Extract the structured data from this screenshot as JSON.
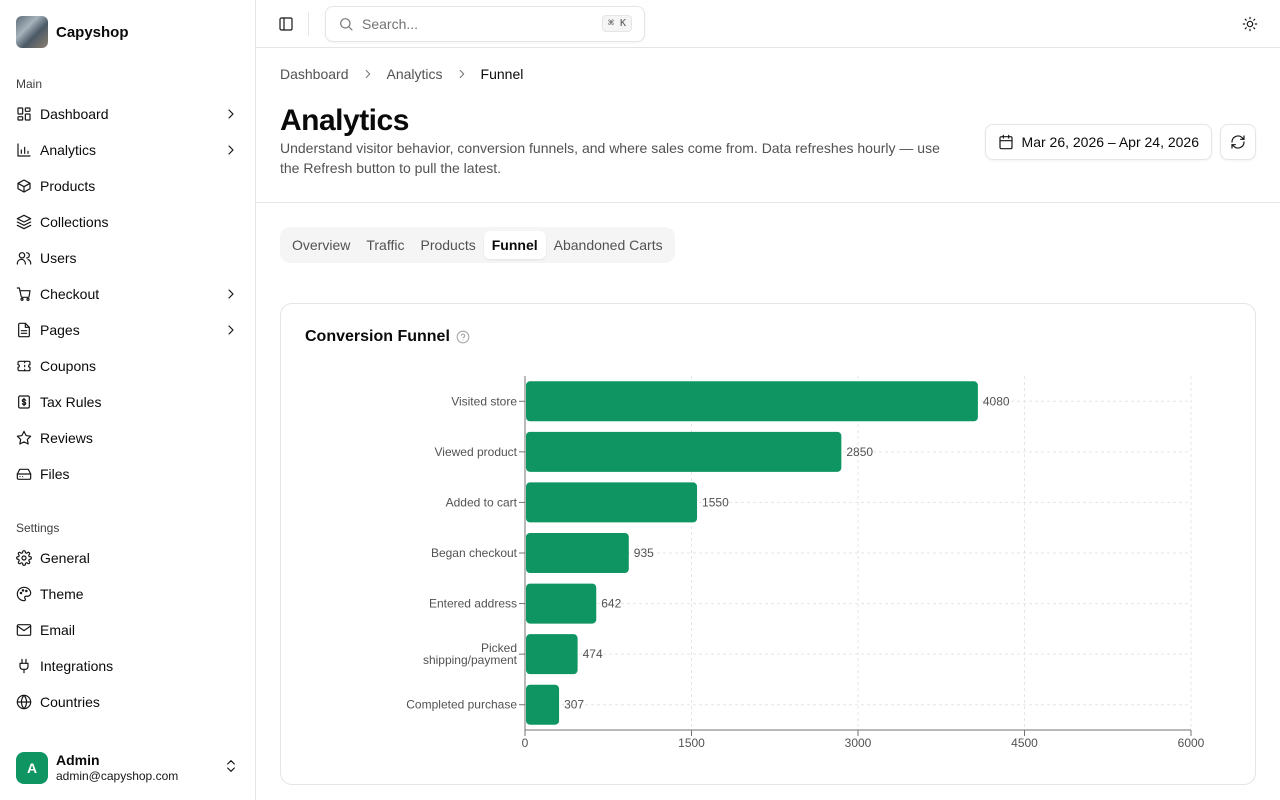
{
  "brand": {
    "name": "Capyshop"
  },
  "sidebar": {
    "main_label": "Main",
    "main_items": [
      {
        "label": "Dashboard",
        "icon": "dashboard-icon",
        "chevron": true
      },
      {
        "label": "Analytics",
        "icon": "analytics-icon",
        "chevron": true
      },
      {
        "label": "Products",
        "icon": "box-icon",
        "chevron": false
      },
      {
        "label": "Collections",
        "icon": "layers-icon",
        "chevron": false
      },
      {
        "label": "Users",
        "icon": "users-icon",
        "chevron": false
      },
      {
        "label": "Checkout",
        "icon": "cart-icon",
        "chevron": true
      },
      {
        "label": "Pages",
        "icon": "file-icon",
        "chevron": true
      },
      {
        "label": "Coupons",
        "icon": "ticket-icon",
        "chevron": false
      },
      {
        "label": "Tax Rules",
        "icon": "dollar-icon",
        "chevron": false
      },
      {
        "label": "Reviews",
        "icon": "star-icon",
        "chevron": false
      },
      {
        "label": "Files",
        "icon": "drive-icon",
        "chevron": false
      }
    ],
    "settings_label": "Settings",
    "settings_items": [
      {
        "label": "General",
        "icon": "gear-icon"
      },
      {
        "label": "Theme",
        "icon": "palette-icon"
      },
      {
        "label": "Email",
        "icon": "mail-icon"
      },
      {
        "label": "Integrations",
        "icon": "plug-icon"
      },
      {
        "label": "Countries",
        "icon": "globe-icon"
      }
    ],
    "user": {
      "initial": "A",
      "name": "Admin",
      "email": "admin@capyshop.com"
    }
  },
  "topbar": {
    "search_placeholder": "Search...",
    "shortcut": "⌘ K"
  },
  "breadcrumb": [
    "Dashboard",
    "Analytics",
    "Funnel"
  ],
  "page": {
    "title": "Analytics",
    "description": "Understand visitor behavior, conversion funnels, and where sales come from. Data refreshes hourly — use the Refresh button to pull the latest.",
    "date_range": "Mar 26, 2026 – Apr 24, 2026"
  },
  "tabs": [
    {
      "label": "Overview",
      "active": false
    },
    {
      "label": "Traffic",
      "active": false
    },
    {
      "label": "Products",
      "active": false
    },
    {
      "label": "Funnel",
      "active": true
    },
    {
      "label": "Abandoned Carts",
      "active": false
    }
  ],
  "card": {
    "title": "Conversion Funnel"
  },
  "colors": {
    "bar": "#0e9562",
    "accent": "#0e9562"
  },
  "chart_data": {
    "type": "bar",
    "orientation": "horizontal",
    "categories": [
      "Visited store",
      "Viewed product",
      "Added to cart",
      "Began checkout",
      "Entered address",
      "Picked shipping/payment",
      "Completed purchase"
    ],
    "category_lines": [
      [
        "Visited store"
      ],
      [
        "Viewed product"
      ],
      [
        "Added to cart"
      ],
      [
        "Began checkout"
      ],
      [
        "Entered address"
      ],
      [
        "Picked",
        "shipping/payment"
      ],
      [
        "Completed purchase"
      ]
    ],
    "values": [
      4080,
      2850,
      1550,
      935,
      642,
      474,
      307
    ],
    "xlim": [
      0,
      6000
    ],
    "xticks": [
      0,
      1500,
      3000,
      4500,
      6000
    ],
    "grid": true,
    "data_labels": true
  }
}
